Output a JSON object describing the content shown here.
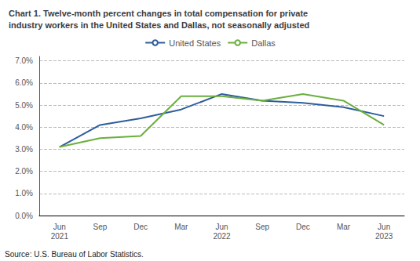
{
  "chart_data": {
    "type": "line",
    "title": "Chart 1. Twelve-month percent changes in total compensation for private\nindustry workers in the United States and Dallas, not seasonally adjusted",
    "categories": [
      "Jun\n2021",
      "Sep",
      "Dec",
      "Mar",
      "Jun\n2022",
      "Sep",
      "Dec",
      "Mar",
      "Jun\n2023"
    ],
    "series": [
      {
        "name": "United States",
        "color": "#2E5D9B",
        "values": [
          0.031,
          0.041,
          0.044,
          0.048,
          0.055,
          0.052,
          0.051,
          0.049,
          0.045
        ]
      },
      {
        "name": "Dallas",
        "color": "#6AAF3D",
        "values": [
          0.031,
          0.035,
          0.036,
          0.054,
          0.054,
          0.052,
          0.055,
          0.052,
          0.041
        ]
      }
    ],
    "ylim": [
      0.0,
      0.072
    ],
    "yticks": [
      {
        "value": 0.0,
        "label": "0.0%"
      },
      {
        "value": 0.01,
        "label": "1.0%"
      },
      {
        "value": 0.02,
        "label": "2.0%"
      },
      {
        "value": 0.03,
        "label": "3.0%"
      },
      {
        "value": 0.04,
        "label": "4.0%"
      },
      {
        "value": 0.05,
        "label": "5.0%"
      },
      {
        "value": 0.06,
        "label": "6.0%"
      },
      {
        "value": 0.07,
        "label": "7.0%"
      }
    ],
    "annotations": [
      "Source: U.S. Bureau of Labor Statistics."
    ],
    "grid": true,
    "legend": "top"
  }
}
